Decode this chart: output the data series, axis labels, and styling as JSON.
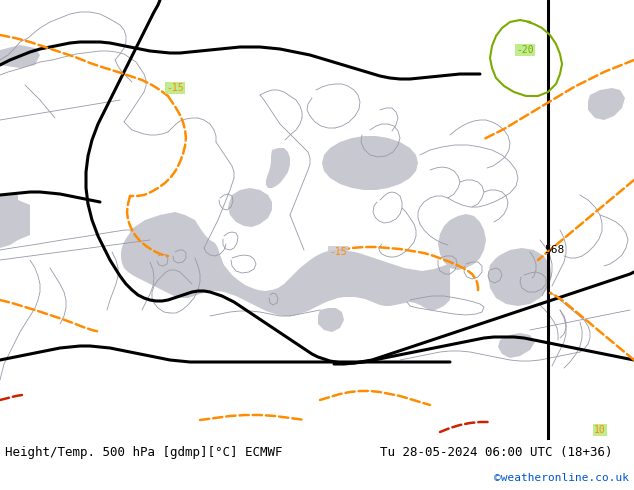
{
  "title_left": "Height/Temp. 500 hPa [gdmp][°C] ECMWF",
  "title_right": "Tu 28-05-2024 06:00 UTC (18+36)",
  "credit": "©weatheronline.co.uk",
  "bg_land": "#b5e87a",
  "bg_sea": "#c8c8d0",
  "border_color": "#9999aa",
  "fig_width": 6.34,
  "fig_height": 4.9,
  "dpi": 100,
  "title_fontsize": 9,
  "credit_fontsize": 8,
  "credit_color": "#0055cc",
  "map_extent": [
    -10,
    50,
    25,
    55
  ],
  "black_lw": 2.2,
  "orange_lw": 1.8,
  "green_lw": 1.5,
  "orange_color": "#ff8c00",
  "green_color": "#7baa00",
  "red_color": "#cc2200"
}
